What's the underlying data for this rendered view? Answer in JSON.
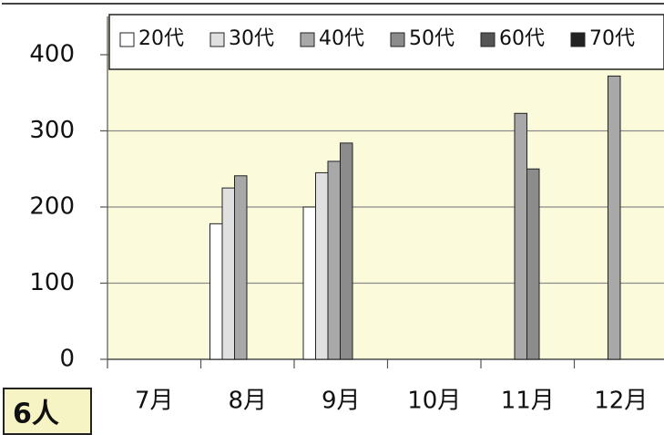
{
  "chart_data": {
    "type": "bar",
    "label": "6人",
    "categories": [
      "7月",
      "8月",
      "9月",
      "10月",
      "11月",
      "12月"
    ],
    "series": [
      {
        "name": "20代",
        "color": "#ffffff",
        "values": [
          null,
          178,
          200,
          null,
          null,
          null
        ]
      },
      {
        "name": "30代",
        "color": "#e0e0e0",
        "values": [
          null,
          225,
          245,
          null,
          null,
          null
        ]
      },
      {
        "name": "40代",
        "color": "#a8a8a8",
        "values": [
          null,
          241,
          260,
          null,
          323,
          372
        ]
      },
      {
        "name": "50代",
        "color": "#8c8c8c",
        "values": [
          null,
          null,
          284,
          null,
          250,
          null
        ]
      },
      {
        "name": "60代",
        "color": "#555555",
        "values": [
          null,
          null,
          null,
          null,
          null,
          null
        ]
      },
      {
        "name": "70代",
        "color": "#222222",
        "values": [
          null,
          null,
          null,
          null,
          null,
          null
        ]
      }
    ],
    "ylim": [
      0,
      400
    ],
    "yticks": [
      0,
      100,
      200,
      300,
      400
    ],
    "grid": true
  }
}
